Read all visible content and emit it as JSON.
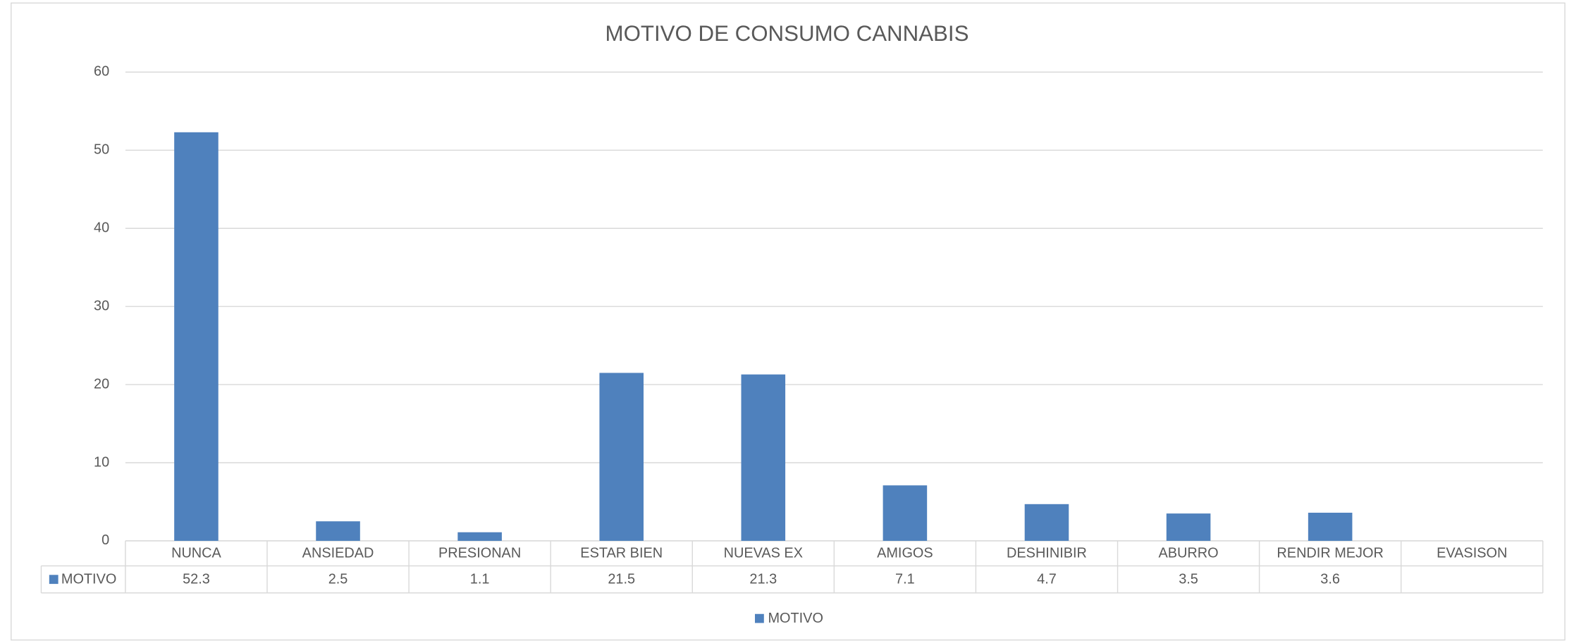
{
  "chart_data": {
    "type": "bar",
    "title": "MOTIVO DE CONSUMO CANNABIS",
    "categories": [
      "NUNCA",
      "ANSIEDAD",
      "PRESIONAN",
      "ESTAR BIEN",
      "NUEVAS EX",
      "AMIGOS",
      "DESHINIBIR",
      "ABURRO",
      "RENDIR MEJOR",
      "EVASISON"
    ],
    "series": [
      {
        "name": "MOTIVO",
        "color": "#4f81bd",
        "values": [
          52.3,
          2.5,
          1.1,
          21.5,
          21.3,
          7.1,
          4.7,
          3.5,
          3.6,
          null
        ]
      }
    ],
    "ylim": [
      0,
      60
    ],
    "yticks": [
      0,
      10,
      20,
      30,
      40,
      50,
      60
    ],
    "grid": true,
    "legend": "bottom"
  }
}
